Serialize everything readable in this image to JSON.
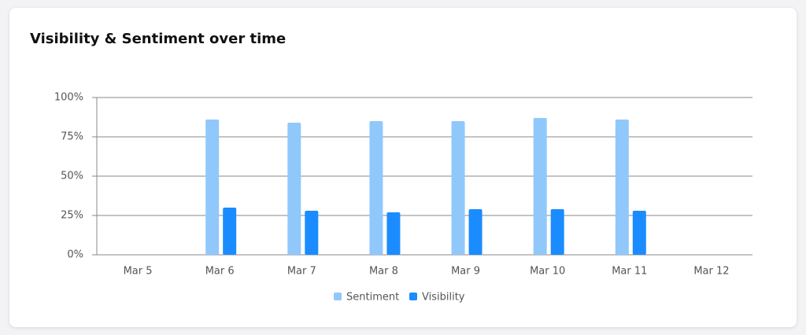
{
  "chart_data": {
    "type": "bar",
    "title": "Visibility & Sentiment over time",
    "categories": [
      "Mar 5",
      "Mar 6",
      "Mar 7",
      "Mar 8",
      "Mar 9",
      "Mar 10",
      "Mar 11",
      "Mar 12"
    ],
    "series": [
      {
        "name": "Sentiment",
        "color": "#90c8fb",
        "values": [
          null,
          86,
          84,
          85,
          85,
          87,
          86,
          null
        ]
      },
      {
        "name": "Visibility",
        "color": "#1a8cff",
        "values": [
          null,
          30,
          28,
          27,
          29,
          29,
          28,
          null
        ]
      }
    ],
    "ylim": [
      0,
      100
    ],
    "yticks": [
      {
        "value": 0,
        "label": "0%"
      },
      {
        "value": 25,
        "label": "25%"
      },
      {
        "value": 50,
        "label": "50%"
      },
      {
        "value": 75,
        "label": "75%"
      },
      {
        "value": 100,
        "label": "100%"
      }
    ],
    "grid": true,
    "legend": "bottom"
  }
}
